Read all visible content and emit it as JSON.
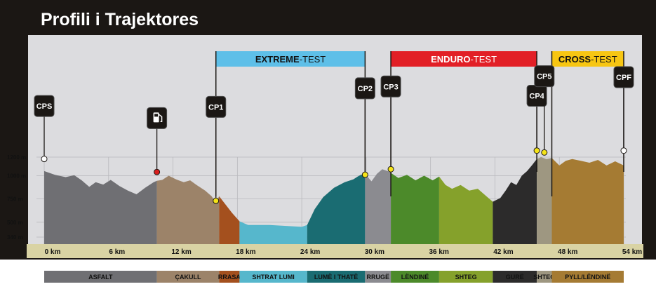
{
  "header": {
    "title": "Profili i Trajektores"
  },
  "colors": {
    "frame": "#1b1714",
    "plot_bg": "#dcdcdf",
    "axis_bar": "#d9d3a4",
    "extreme": "#5ebfe8",
    "enduro": "#e21f26",
    "cross": "#f7c613"
  },
  "chart_data": {
    "type": "area",
    "title": "Profili i Trajektores",
    "x_unit": "km",
    "y_unit": "m",
    "xlim": [
      0,
      54
    ],
    "ylim": [
      340,
      1300
    ],
    "x_ticks": [
      0,
      6,
      12,
      18,
      24,
      30,
      36,
      42,
      48,
      54
    ],
    "x_tick_labels": [
      "0 km",
      "6 km",
      "12 km",
      "18 km",
      "24 km",
      "30 km",
      "36 km",
      "42 km",
      "48 km",
      "54 km"
    ],
    "y_ticks": [
      340,
      500,
      750,
      1000,
      1200
    ],
    "y_tick_labels": [
      "340 m",
      "500 m",
      "750 m",
      "1000 m",
      "1200 m"
    ],
    "profile": [
      [
        0,
        1050
      ],
      [
        1,
        1010
      ],
      [
        2,
        985
      ],
      [
        2.8,
        1005
      ],
      [
        3.5,
        950
      ],
      [
        4.2,
        880
      ],
      [
        4.8,
        930
      ],
      [
        5.5,
        905
      ],
      [
        6.2,
        955
      ],
      [
        7,
        890
      ],
      [
        7.8,
        840
      ],
      [
        8.6,
        800
      ],
      [
        9.4,
        870
      ],
      [
        10.2,
        930
      ],
      [
        10.5,
        945
      ],
      [
        11,
        955
      ],
      [
        11.6,
        1000
      ],
      [
        12.3,
        960
      ],
      [
        13,
        930
      ],
      [
        13.6,
        950
      ],
      [
        14.2,
        900
      ],
      [
        15,
        840
      ],
      [
        15.6,
        780
      ],
      [
        16,
        710
      ],
      [
        16.3,
        780
      ],
      [
        16.7,
        720
      ],
      [
        17.1,
        660
      ],
      [
        17.5,
        600
      ],
      [
        18.2,
        510
      ],
      [
        19,
        470
      ],
      [
        21,
        470
      ],
      [
        24,
        450
      ],
      [
        24.5,
        470
      ],
      [
        25.2,
        640
      ],
      [
        26,
        770
      ],
      [
        27,
        870
      ],
      [
        28,
        930
      ],
      [
        28.8,
        960
      ],
      [
        29.2,
        990
      ],
      [
        29.5,
        1010
      ],
      [
        29.9,
        1020
      ],
      [
        30.5,
        940
      ],
      [
        31,
        1020
      ],
      [
        31.5,
        1070
      ],
      [
        32,
        1050
      ],
      [
        32.3,
        1030
      ],
      [
        33,
        975
      ],
      [
        33.8,
        1010
      ],
      [
        34.6,
        950
      ],
      [
        35.4,
        1000
      ],
      [
        36.2,
        950
      ],
      [
        36.8,
        990
      ],
      [
        37.4,
        900
      ],
      [
        38,
        860
      ],
      [
        38.8,
        900
      ],
      [
        39.6,
        840
      ],
      [
        40.4,
        860
      ],
      [
        41.2,
        780
      ],
      [
        41.8,
        720
      ],
      [
        42.5,
        760
      ],
      [
        43,
        840
      ],
      [
        43.5,
        930
      ],
      [
        44,
        900
      ],
      [
        44.5,
        1000
      ],
      [
        45,
        1050
      ],
      [
        45.5,
        1120
      ],
      [
        45.9,
        1180
      ],
      [
        46.3,
        1200
      ],
      [
        46.8,
        1180
      ],
      [
        47.3,
        1190
      ],
      [
        48,
        1110
      ],
      [
        48.6,
        1160
      ],
      [
        49.2,
        1180
      ],
      [
        50,
        1160
      ],
      [
        50.8,
        1140
      ],
      [
        51.6,
        1170
      ],
      [
        52.4,
        1110
      ],
      [
        53.2,
        1155
      ],
      [
        54,
        1110
      ]
    ],
    "surface_segments": [
      {
        "from": 0,
        "to": 10.5,
        "surface": "ASFALT",
        "color": "#6f6f73"
      },
      {
        "from": 10.5,
        "to": 16.3,
        "surface": "ÇAKULL",
        "color": "#9c8369"
      },
      {
        "from": 16.3,
        "to": 18.2,
        "surface": "RRASA",
        "color": "#a4501e"
      },
      {
        "from": 18.2,
        "to": 24.5,
        "surface": "SHTRAT LUMI",
        "color": "#56b7cc"
      },
      {
        "from": 24.5,
        "to": 29.9,
        "surface": "LUMË I THATË",
        "color": "#1a6c72"
      },
      {
        "from": 29.9,
        "to": 32.3,
        "surface": "RRUGË",
        "color": "#8b8b90"
      },
      {
        "from": 32.3,
        "to": 36.8,
        "surface": "LËNDINË",
        "color": "#4c8a2a"
      },
      {
        "from": 36.8,
        "to": 41.8,
        "surface": "SHTEG",
        "color": "#85a12b"
      },
      {
        "from": 41.8,
        "to": 45.9,
        "surface": "GURË",
        "color": "#2c2b2b"
      },
      {
        "from": 45.9,
        "to": 47.3,
        "surface": "SHTEG",
        "color": "#9e9781"
      },
      {
        "from": 47.3,
        "to": 54,
        "surface": "PYLL/LËNDINË",
        "color": "#a57b33"
      }
    ],
    "sections": [
      {
        "name": "EXTREME",
        "suffix": "-TEST",
        "from": 16.0,
        "to": 29.9,
        "color": "#5ebfe8"
      },
      {
        "name": "ENDURO",
        "suffix": "-TEST",
        "from": 32.3,
        "to": 45.9,
        "color": "#e21f26"
      },
      {
        "name": "CROSS",
        "suffix": "-TEST",
        "from": 47.3,
        "to": 54.0,
        "color": "#f7c613"
      }
    ],
    "checkpoints": [
      {
        "label": "CPS",
        "km": 0,
        "elev": 1180,
        "box_elev": 1750,
        "dot": "#ffffff",
        "text_color": "#4fb848"
      },
      {
        "label": "FUEL",
        "km": 10.5,
        "elev": 1040,
        "box_elev": 1620,
        "dot": "#d81e1e",
        "text_color": "#ffffff"
      },
      {
        "label": "CP1",
        "km": 16.0,
        "elev": 730,
        "box_elev": 1740,
        "dot": "#f5e418",
        "text_color": "#ffffff"
      },
      {
        "label": "CP2",
        "km": 29.9,
        "elev": 1010,
        "box_elev": 1940,
        "dot": "#f5e418",
        "text_color": "#ffffff"
      },
      {
        "label": "CP3",
        "km": 32.3,
        "elev": 1070,
        "box_elev": 1960,
        "dot": "#f5e418",
        "text_color": "#ffffff"
      },
      {
        "label": "CP4",
        "km": 45.9,
        "elev": 1270,
        "box_elev": 1860,
        "dot": "#f5e418",
        "text_color": "#ffffff"
      },
      {
        "label": "CP5",
        "km": 46.6,
        "elev": 1250,
        "box_elev": 2070,
        "dot": "#f5e418",
        "text_color": "#ffffff"
      },
      {
        "label": "CPF",
        "km": 54,
        "elev": 1270,
        "box_elev": 2060,
        "dot": "#ffffff",
        "text_color": "#9a9a9f"
      }
    ],
    "legend": [
      {
        "label": "ASFALT",
        "color": "#6f6f73"
      },
      {
        "label": "ÇAKULL",
        "color": "#9c8369"
      },
      {
        "label": "RRASA",
        "color": "#a4501e"
      },
      {
        "label": "SHTRAT LUMI",
        "color": "#56b7cc"
      },
      {
        "label": "LUMË I THATË",
        "color": "#1a6c72"
      },
      {
        "label": "RRUGË",
        "color": "#8b8b90"
      },
      {
        "label": "LËNDINË",
        "color": "#4c8a2a"
      },
      {
        "label": "SHTEG",
        "color": "#85a12b"
      },
      {
        "label": "GURË",
        "color": "#2c2b2b"
      },
      {
        "label": "SHTEG",
        "color": "#9e9781"
      },
      {
        "label": "PYLL/LËNDINË",
        "color": "#a57b33"
      }
    ]
  }
}
